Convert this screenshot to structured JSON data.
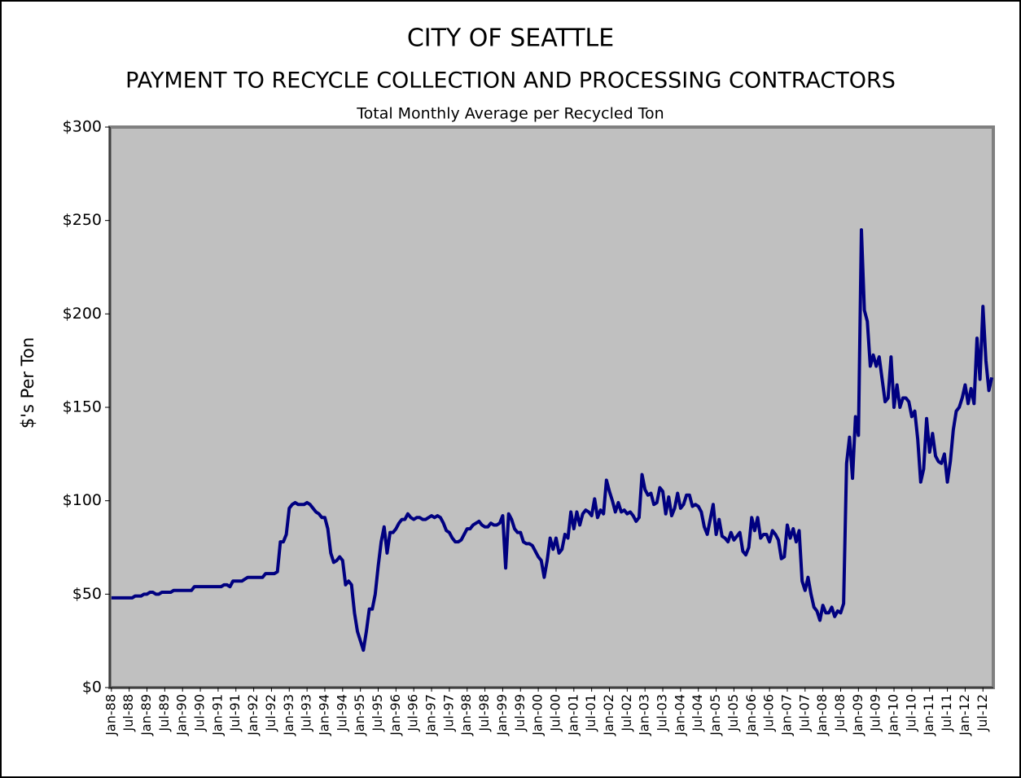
{
  "chart_data": {
    "type": "line",
    "title": "CITY OF SEATTLE",
    "subtitle": "PAYMENT TO RECYCLE COLLECTION AND PROCESSING CONTRACTORS",
    "caption": "Total Monthly Average per Recycled Ton",
    "y_label": "$'s  Per Ton",
    "ylim": [
      0,
      300
    ],
    "yticks": [
      {
        "value": 0,
        "label": "$0"
      },
      {
        "value": 50,
        "label": "$50"
      },
      {
        "value": 100,
        "label": "$100"
      },
      {
        "value": 150,
        "label": "$150"
      },
      {
        "value": 200,
        "label": "$200"
      },
      {
        "value": 250,
        "label": "$250"
      },
      {
        "value": 300,
        "label": "$300"
      }
    ],
    "categories": [
      "Jan-88",
      null,
      null,
      null,
      null,
      null,
      "Jul-88",
      null,
      null,
      null,
      null,
      null,
      "Jan-89",
      null,
      null,
      null,
      null,
      null,
      "Jul-89",
      null,
      null,
      null,
      null,
      null,
      "Jan-90",
      null,
      null,
      null,
      null,
      null,
      "Jul-90",
      null,
      null,
      null,
      null,
      null,
      "Jan-91",
      null,
      null,
      null,
      null,
      null,
      "Jul-91",
      null,
      null,
      null,
      null,
      null,
      "Jan-92",
      null,
      null,
      null,
      null,
      null,
      "Jul-92",
      null,
      null,
      null,
      null,
      null,
      "Jan-93",
      null,
      null,
      null,
      null,
      null,
      "Jul-93",
      null,
      null,
      null,
      null,
      null,
      "Jan-94",
      null,
      null,
      null,
      null,
      null,
      "Jul-94",
      null,
      null,
      null,
      null,
      null,
      "Jan-95",
      null,
      null,
      null,
      null,
      null,
      "Jul-95",
      null,
      null,
      null,
      null,
      null,
      "Jan-96",
      null,
      null,
      null,
      null,
      null,
      "Jul-96",
      null,
      null,
      null,
      null,
      null,
      "Jan-97",
      null,
      null,
      null,
      null,
      null,
      "Jul-97",
      null,
      null,
      null,
      null,
      null,
      "Jan-98",
      null,
      null,
      null,
      null,
      null,
      "Jul-98",
      null,
      null,
      null,
      null,
      null,
      "Jan-99",
      null,
      null,
      null,
      null,
      null,
      "Jul-99",
      null,
      null,
      null,
      null,
      null,
      "Jan-00",
      null,
      null,
      null,
      null,
      null,
      "Jul-00",
      null,
      null,
      null,
      null,
      null,
      "Jan-01",
      null,
      null,
      null,
      null,
      null,
      "Jul-01",
      null,
      null,
      null,
      null,
      null,
      "Jan-02",
      null,
      null,
      null,
      null,
      null,
      "Jul-02",
      null,
      null,
      null,
      null,
      null,
      "Jan-03",
      null,
      null,
      null,
      null,
      null,
      "Jul-03",
      null,
      null,
      null,
      null,
      null,
      "Jan-04",
      null,
      null,
      null,
      null,
      null,
      "Jul-04",
      null,
      null,
      null,
      null,
      null,
      "Jan-05",
      null,
      null,
      null,
      null,
      null,
      "Jul-05",
      null,
      null,
      null,
      null,
      null,
      "Jan-06",
      null,
      null,
      null,
      null,
      null,
      "Jul-06",
      null,
      null,
      null,
      null,
      null,
      "Jan-07",
      null,
      null,
      null,
      null,
      null,
      "Jul-07",
      null,
      null,
      null,
      null,
      null,
      "Jan-08",
      null,
      null,
      null,
      null,
      null,
      "Jul-08",
      null,
      null,
      null,
      null,
      null,
      "Jan-09",
      null,
      null,
      null,
      null,
      null,
      "Jul-09",
      null,
      null,
      null,
      null,
      null,
      "Jan-10",
      null,
      null,
      null,
      null,
      null,
      "Jul-10",
      null,
      null,
      null,
      null,
      null,
      "Jan-11",
      null,
      null,
      null,
      null,
      null,
      "Jul-11",
      null,
      null,
      null,
      null,
      null,
      "Jan-12",
      null,
      null,
      null,
      null,
      null,
      "Jul-12",
      null,
      null,
      null
    ],
    "series": [
      {
        "color": "#000080",
        "values": [
          48,
          48,
          48,
          48,
          48,
          48,
          48,
          48,
          49,
          49,
          49,
          50,
          50,
          51,
          51,
          50,
          50,
          51,
          51,
          51,
          51,
          52,
          52,
          52,
          52,
          52,
          52,
          52,
          54,
          54,
          54,
          54,
          54,
          54,
          54,
          54,
          54,
          54,
          55,
          55,
          54,
          57,
          57,
          57,
          57,
          58,
          59,
          59,
          59,
          59,
          59,
          59,
          61,
          61,
          61,
          61,
          62,
          78,
          78,
          82,
          96,
          98,
          99,
          98,
          98,
          98,
          99,
          98,
          96,
          94,
          93,
          91,
          91,
          85,
          72,
          67,
          68,
          70,
          68,
          55,
          57,
          55,
          40,
          30,
          25,
          20,
          30,
          42,
          42,
          50,
          65,
          78,
          86,
          72,
          83,
          83,
          85,
          88,
          90,
          90,
          93,
          91,
          90,
          91,
          91,
          90,
          90,
          91,
          92,
          91,
          92,
          91,
          88,
          84,
          83,
          80,
          78,
          78,
          79,
          82,
          85,
          85,
          87,
          88,
          89,
          87,
          86,
          86,
          88,
          87,
          87,
          88,
          92,
          64,
          93,
          90,
          85,
          83,
          83,
          78,
          77,
          77,
          76,
          73,
          70,
          68,
          59,
          68,
          80,
          74,
          80,
          72,
          74,
          82,
          80,
          94,
          85,
          94,
          87,
          93,
          95,
          94,
          92,
          101,
          91,
          95,
          93,
          111,
          105,
          100,
          94,
          99,
          94,
          95,
          93,
          94,
          92,
          89,
          91,
          114,
          106,
          103,
          104,
          98,
          99,
          107,
          105,
          93,
          102,
          92,
          96,
          104,
          96,
          98,
          103,
          103,
          97,
          98,
          97,
          94,
          86,
          82,
          90,
          98,
          82,
          90,
          81,
          80,
          78,
          83,
          79,
          81,
          83,
          73,
          71,
          75,
          91,
          84,
          91,
          80,
          82,
          82,
          78,
          84,
          82,
          79,
          69,
          70,
          87,
          80,
          85,
          78,
          84,
          57,
          52,
          59,
          50,
          43,
          41,
          36,
          44,
          40,
          40,
          43,
          38,
          41,
          40,
          45,
          120,
          134,
          112,
          145,
          135,
          245,
          202,
          196,
          172,
          178,
          172,
          177,
          165,
          153,
          155,
          177,
          150,
          162,
          150,
          155,
          155,
          153,
          145,
          148,
          133,
          110,
          117,
          144,
          126,
          136,
          124,
          121,
          120,
          125,
          110,
          121,
          138,
          148,
          150,
          155,
          162,
          152,
          160,
          152,
          187,
          165,
          204,
          175,
          159,
          166
        ]
      }
    ]
  }
}
